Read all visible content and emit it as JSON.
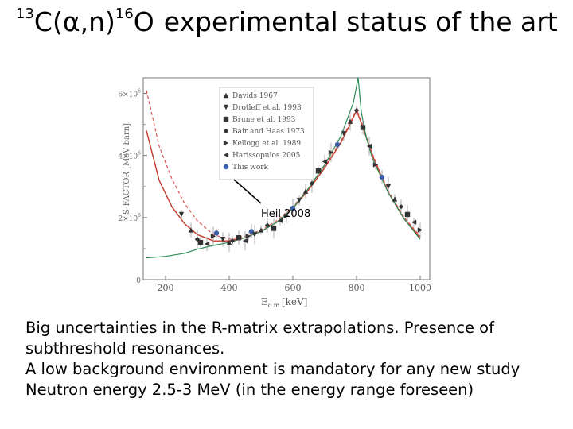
{
  "title": {
    "pre": "C(",
    "mass_c": "13",
    "alpha": "α",
    "mid": ",n)",
    "mass_o": "16",
    "post": "O",
    "rest": "experimental status of the art"
  },
  "chart_data": {
    "type": "scatter",
    "xlabel": "E",
    "xlabel_sub": "c.m.",
    "xlabel_unit": "[keV]",
    "ylabel": "S-FACTOR [MeV barn]",
    "xlim": [
      130,
      1030
    ],
    "ylim": [
      0,
      6500000
    ],
    "x_ticks": [
      "200",
      "400",
      "600",
      "800",
      "1000"
    ],
    "y_ticks": [
      "0",
      "2×10",
      "4×10",
      "6×10"
    ],
    "y_tick_exp": "6",
    "annotation": "Heil 2008",
    "legend": [
      {
        "label": "Davids 1967",
        "marker": "triangle-up"
      },
      {
        "label": "Drotleff et al. 1993",
        "marker": "triangle-down"
      },
      {
        "label": "Brune et al. 1993",
        "marker": "square"
      },
      {
        "label": "Bair and Haas 1973",
        "marker": "diamond"
      },
      {
        "label": "Kellogg et al. 1989",
        "marker": "triangle-right"
      },
      {
        "label": "Harissopulos 2005",
        "marker": "triangle-left"
      },
      {
        "label": "This work",
        "marker": "circle"
      }
    ],
    "series": [
      {
        "name": "R-matrix fit (solid red)",
        "style": "solid-red",
        "x": [
          140,
          180,
          220,
          260,
          300,
          350,
          400,
          450,
          500,
          550,
          600,
          650,
          700,
          750,
          780,
          800,
          820,
          850,
          900,
          950,
          1000
        ],
        "y": [
          4800000,
          3200000,
          2350000,
          1800000,
          1450000,
          1250000,
          1250000,
          1350000,
          1550000,
          1850000,
          2300000,
          2900000,
          3600000,
          4400000,
          5000000,
          5450000,
          4900000,
          4000000,
          2800000,
          1950000,
          1350000
        ]
      },
      {
        "name": "R-matrix fit (dashed red)",
        "style": "dashed-red",
        "x": [
          140,
          180,
          220,
          260,
          300,
          350,
          400,
          450,
          500,
          550,
          600,
          650,
          700,
          750,
          780,
          800,
          820,
          850,
          900,
          950,
          1000
        ],
        "y": [
          6100000,
          4300000,
          3250000,
          2450000,
          1900000,
          1450000,
          1300000,
          1400000,
          1600000,
          1900000,
          2350000,
          2950000,
          3650000,
          4450000,
          5050000,
          5500000,
          4950000,
          4050000,
          2850000,
          2000000,
          1400000
        ]
      },
      {
        "name": "R-matrix fit (green)",
        "style": "solid-green",
        "x": [
          140,
          200,
          260,
          300,
          350,
          400,
          450,
          500,
          550,
          600,
          650,
          700,
          750,
          790,
          805,
          815,
          830,
          850,
          900,
          950,
          1000
        ],
        "y": [
          700000,
          750000,
          850000,
          980000,
          1100000,
          1200000,
          1350000,
          1550000,
          1850000,
          2300000,
          2950000,
          3700000,
          4600000,
          5700000,
          6500000,
          5400000,
          4600000,
          3900000,
          2800000,
          1950000,
          1300000
        ]
      },
      {
        "name": "Data points",
        "style": "markers",
        "x": [
          250,
          280,
          300,
          310,
          330,
          350,
          360,
          380,
          400,
          410,
          430,
          450,
          460,
          470,
          480,
          500,
          520,
          540,
          560,
          580,
          600,
          620,
          640,
          660,
          680,
          700,
          720,
          740,
          760,
          780,
          800,
          820,
          840,
          860,
          880,
          900,
          920,
          940,
          960,
          980,
          1000
        ],
        "y": [
          2100000,
          1600000,
          1300000,
          1200000,
          1150000,
          1400000,
          1500000,
          1300000,
          1200000,
          1250000,
          1350000,
          1250000,
          1400000,
          1550000,
          1450000,
          1600000,
          1750000,
          1650000,
          1900000,
          2050000,
          2300000,
          2550000,
          2850000,
          3100000,
          3500000,
          3800000,
          4100000,
          4350000,
          4700000,
          5100000,
          5450000,
          4900000,
          4300000,
          3700000,
          3300000,
          3000000,
          2600000,
          2350000,
          2100000,
          1850000,
          1600000
        ]
      }
    ]
  },
  "body": {
    "line1": "Big uncertainties in the R-matrix extrapolations. Presence of",
    "line2": "subthreshold resonances.",
    "line3": "A low background environment is mandatory for any new study",
    "line4": "Neutron energy 2.5-3 MeV (in the energy range foreseen)"
  }
}
